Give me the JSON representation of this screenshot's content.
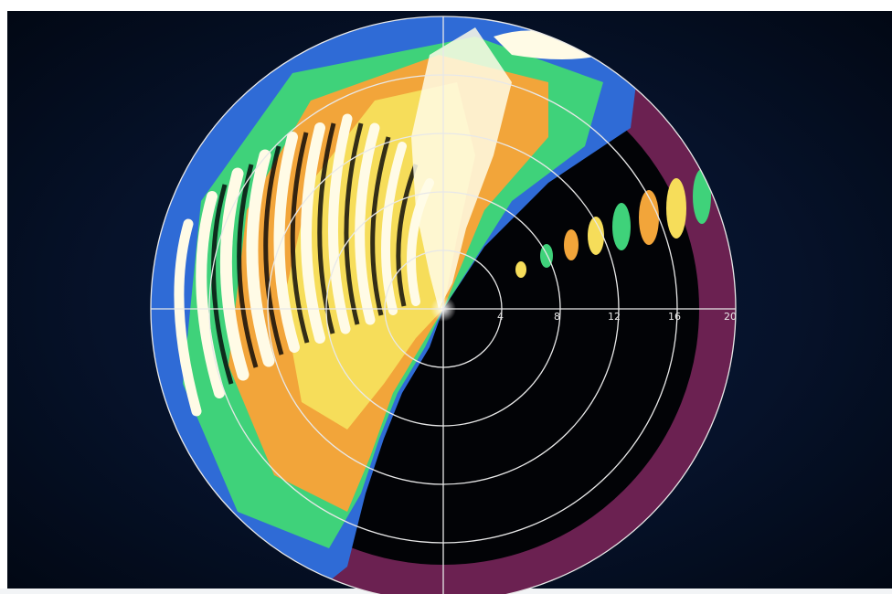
{
  "range_rings": {
    "labels": [
      "4",
      "8",
      "12",
      "16",
      "20"
    ]
  },
  "colors": {
    "background": "#06122a",
    "shadow": "#020306",
    "echo_white": "#fffbe6",
    "echo_orange": "#f2a53a",
    "echo_yellow": "#f6dd5a",
    "echo_green": "#3fd27a",
    "echo_blue": "#2f6bd6",
    "clutter_magenta": "#c23a8f",
    "grid": "#e8e8e8"
  }
}
